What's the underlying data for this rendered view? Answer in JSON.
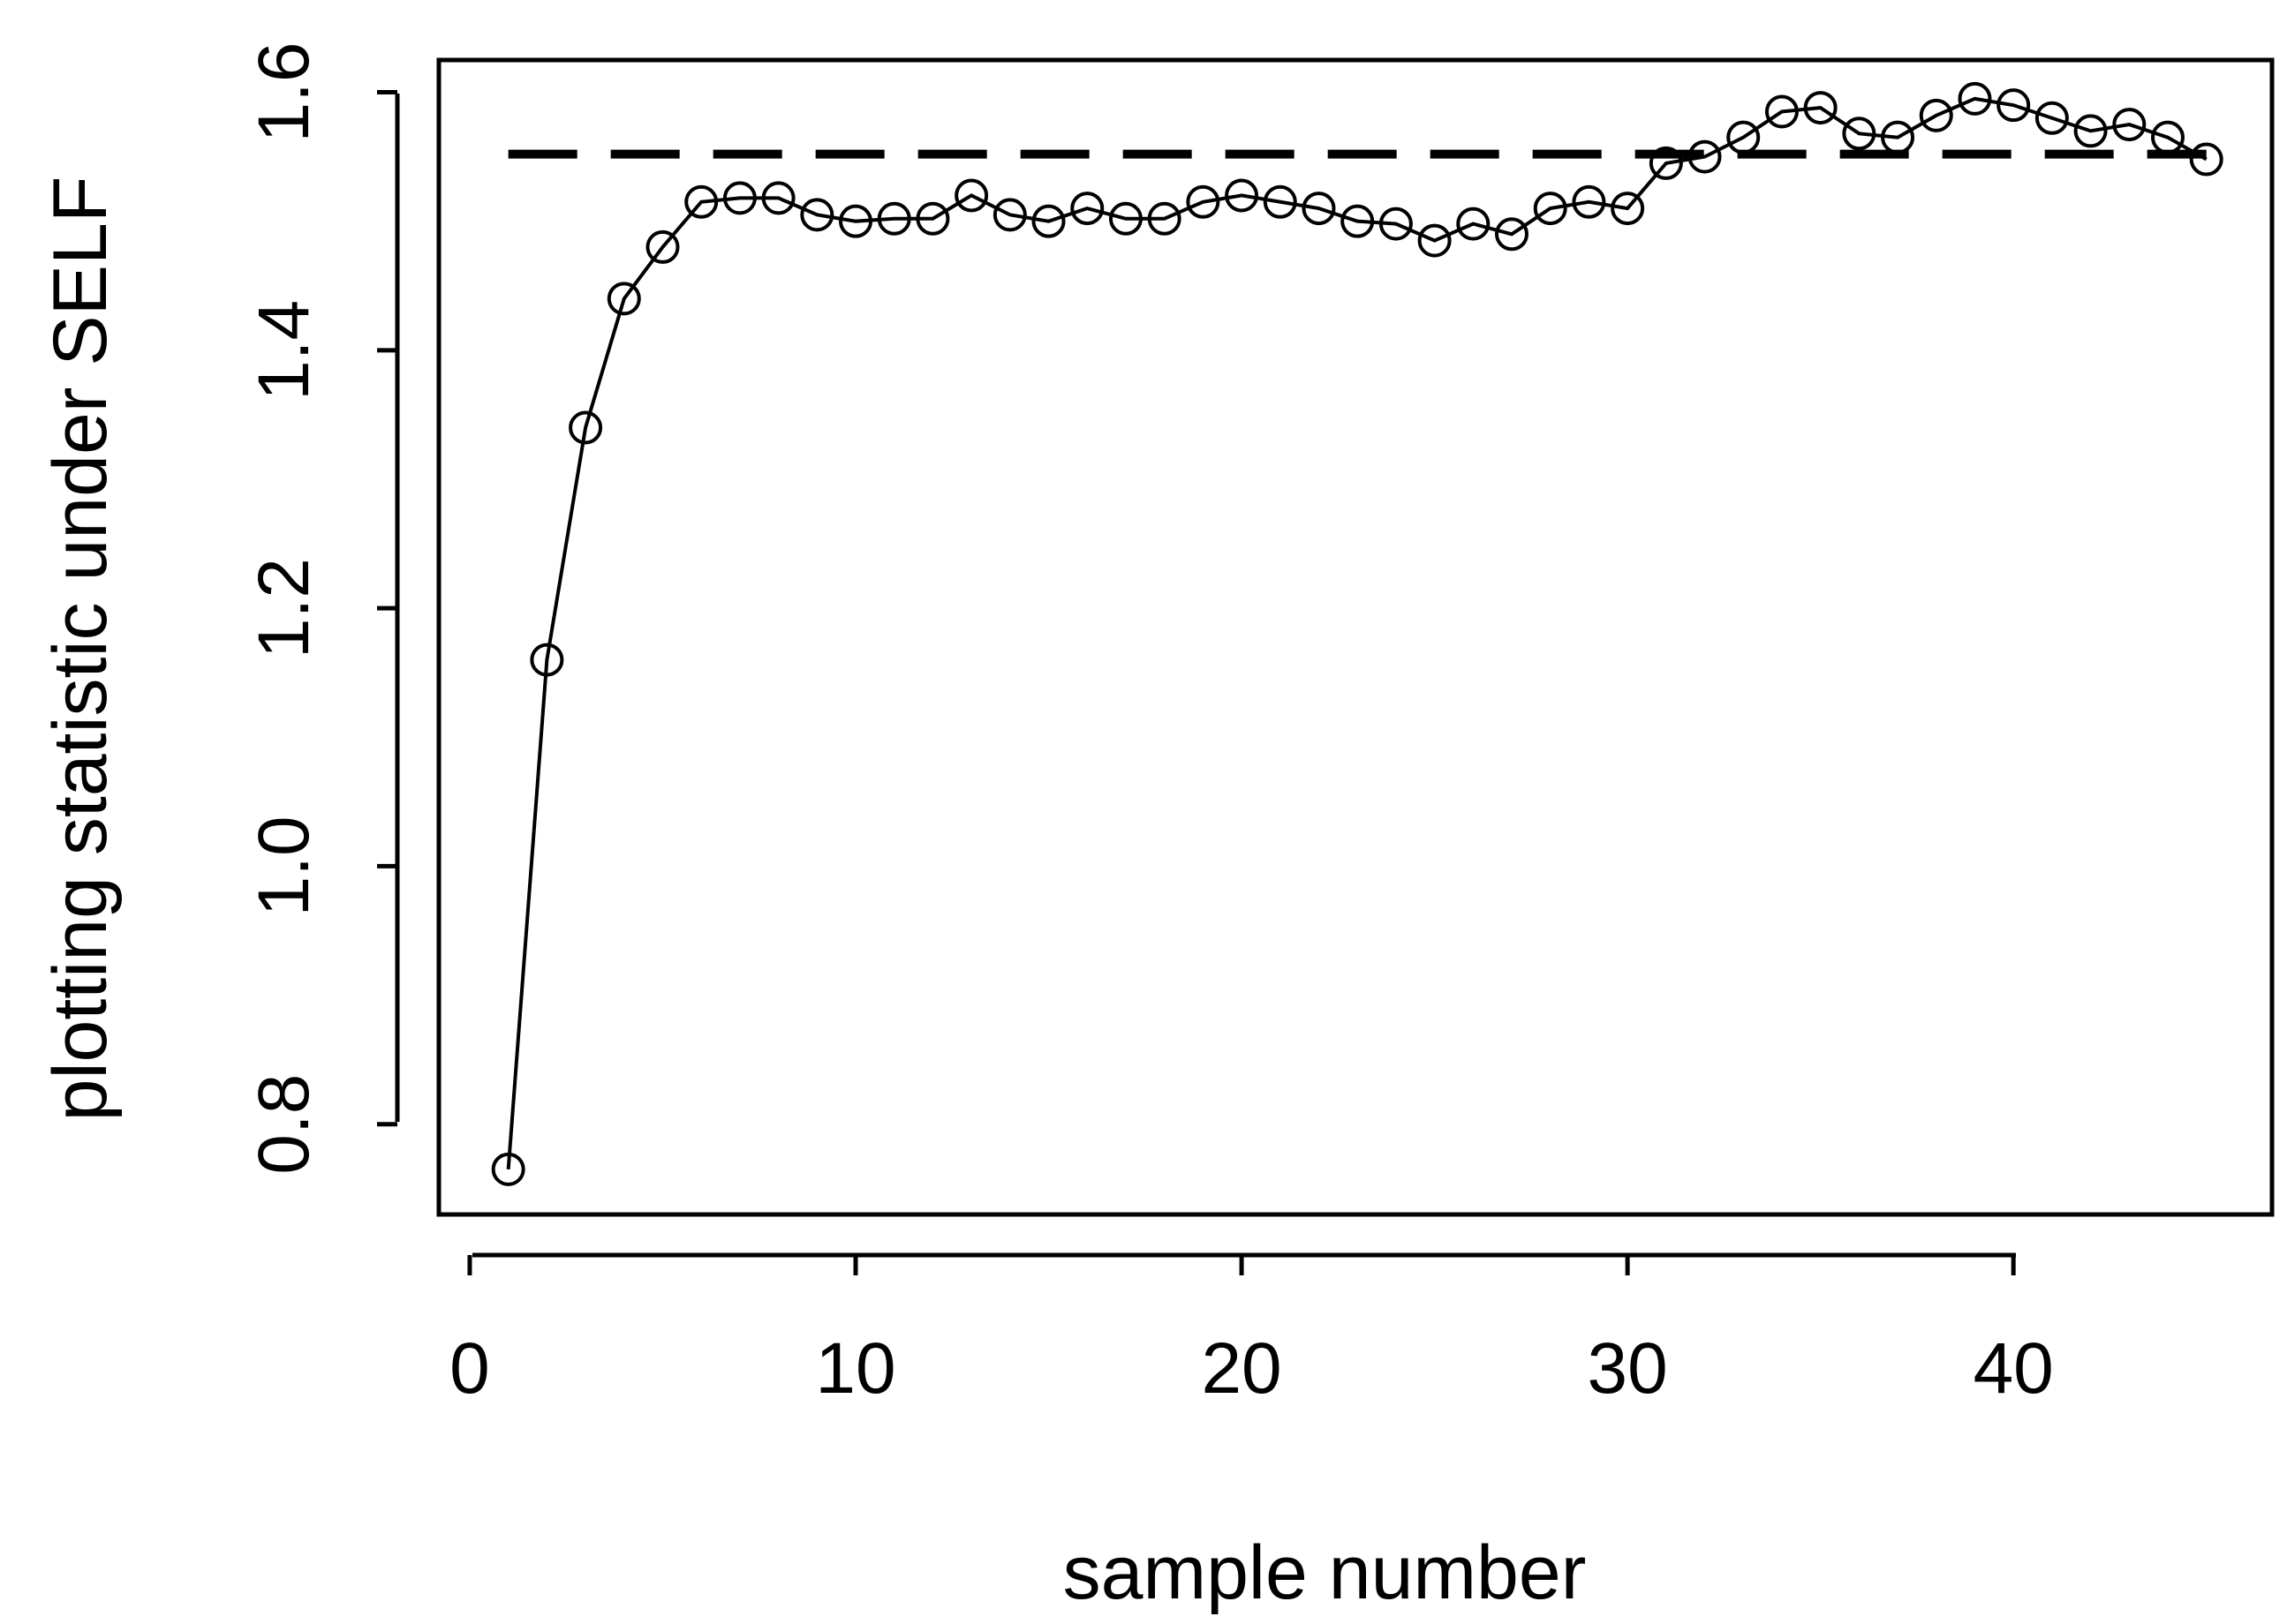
{
  "chart_data": {
    "type": "line",
    "title": "",
    "xlabel": "sample number",
    "ylabel": "plotting statistic under SELF",
    "xlim": [
      -0.8,
      46.7
    ],
    "ylim": [
      0.73,
      1.625
    ],
    "xticks": [
      0,
      10,
      20,
      30,
      40
    ],
    "yticks": [
      0.8,
      1.0,
      1.2,
      1.4,
      1.6
    ],
    "xtick_labels": [
      "0",
      "10",
      "20",
      "30",
      "40"
    ],
    "ytick_labels": [
      "0.8",
      "1.0",
      "1.2",
      "1.4",
      "1.6"
    ],
    "grid": false,
    "legend": "none",
    "series": [
      {
        "style": "line-with-open-circles",
        "color": "#000000",
        "x": [
          1,
          2,
          3,
          4,
          5,
          6,
          7,
          8,
          9,
          10,
          11,
          12,
          13,
          14,
          15,
          16,
          17,
          18,
          19,
          20,
          21,
          22,
          23,
          24,
          25,
          26,
          27,
          28,
          29,
          30,
          31,
          32,
          33,
          34,
          35,
          36,
          37,
          38,
          39,
          40,
          41,
          42,
          43,
          44,
          45
        ],
        "y": [
          0.765,
          1.16,
          1.34,
          1.44,
          1.48,
          1.515,
          1.518,
          1.518,
          1.505,
          1.5,
          1.502,
          1.502,
          1.52,
          1.505,
          1.5,
          1.51,
          1.502,
          1.502,
          1.515,
          1.52,
          1.515,
          1.51,
          1.5,
          1.498,
          1.485,
          1.498,
          1.49,
          1.51,
          1.515,
          1.51,
          1.545,
          1.55,
          1.565,
          1.585,
          1.588,
          1.568,
          1.565,
          1.582,
          1.595,
          1.59,
          1.58,
          1.57,
          1.575,
          1.565,
          1.548
        ]
      },
      {
        "style": "dashed-reference-line",
        "color": "#000000",
        "x": [
          1,
          45
        ],
        "y": [
          1.552,
          1.552
        ]
      }
    ]
  }
}
